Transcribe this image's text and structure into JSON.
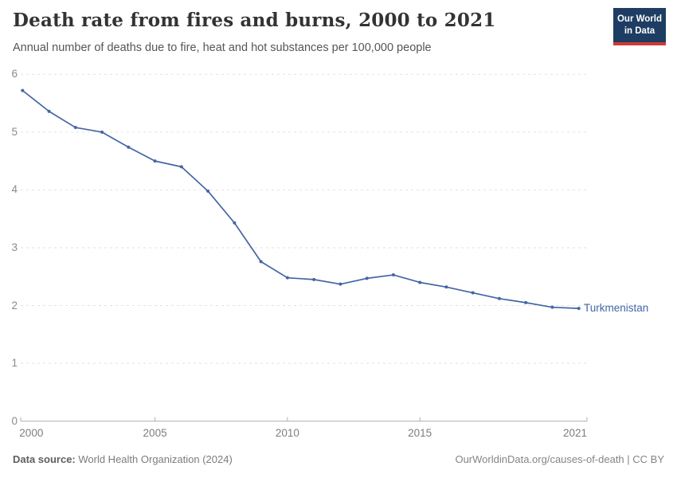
{
  "header": {
    "title": "Death rate from fires and burns, 2000 to 2021",
    "subtitle": "Annual number of deaths due to fire, heat and hot substances per 100,000 people",
    "logo": {
      "line1": "Our World",
      "line2": "in Data"
    }
  },
  "chart_data": {
    "type": "line",
    "title": "Death rate from fires and burns, 2000 to 2021",
    "xlabel": "",
    "ylabel": "Annual number of deaths due to fire, heat and hot substances per 100,000 people",
    "x": [
      2000,
      2001,
      2002,
      2003,
      2004,
      2005,
      2006,
      2007,
      2008,
      2009,
      2010,
      2011,
      2012,
      2013,
      2014,
      2015,
      2016,
      2017,
      2018,
      2019,
      2020,
      2021
    ],
    "series": [
      {
        "name": "Turkmenistan",
        "color": "#4465a3",
        "values": [
          5.72,
          5.36,
          5.08,
          5.0,
          4.74,
          4.5,
          4.4,
          3.98,
          3.43,
          2.76,
          2.48,
          2.45,
          2.37,
          2.47,
          2.53,
          2.4,
          2.32,
          2.22,
          2.12,
          2.05,
          1.97,
          1.95
        ]
      }
    ],
    "ylim": [
      0,
      6
    ],
    "yticks": [
      0,
      1,
      2,
      3,
      4,
      5,
      6
    ],
    "xticks": [
      2000,
      2005,
      2010,
      2015,
      2021
    ],
    "grid": "dashed-horizontal",
    "legend_position": "label-right-of-last-point"
  },
  "footer": {
    "datasource_label": "Data source:",
    "datasource_value": " World Health Organization (2024)",
    "credit": "OurWorldinData.org/causes-of-death | CC BY"
  },
  "colors": {
    "line": "#4465a3",
    "gridline": "#e2e2e2",
    "axis": "#b0b0b0",
    "logo_navy": "#1d3d63",
    "logo_red": "#cf3a34"
  }
}
